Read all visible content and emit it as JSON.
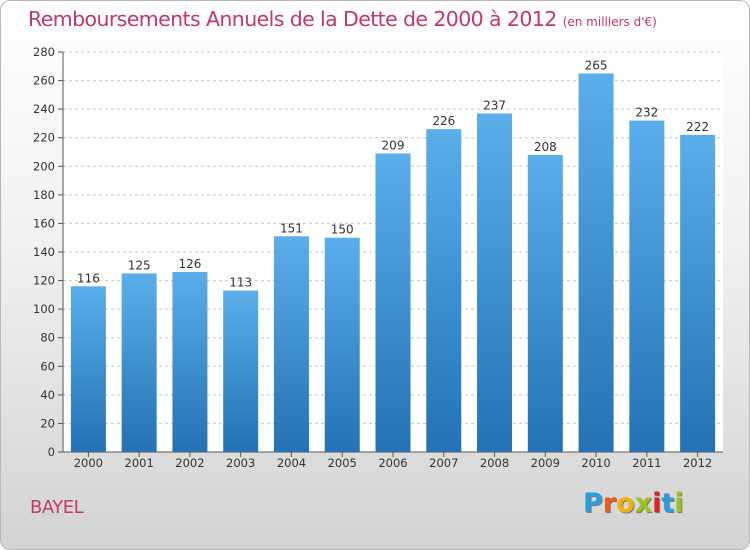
{
  "title": "Remboursements Annuels de la Dette de 2000 à 2012",
  "unit_label": "(en milliers d'€)",
  "commune": "BAYEL",
  "logo": {
    "letters": [
      "P",
      "r",
      "o",
      "x",
      "i",
      "t",
      "i"
    ],
    "colors": [
      "#2d9be0",
      "#e85d1a",
      "#f2b10a",
      "#9ec21c",
      "#e02222",
      "#2d9be0",
      "#9ec21c"
    ]
  },
  "colors": {
    "title": "#c2386b",
    "bar_top": "#5aaeea",
    "bar_bottom": "#2472b4",
    "grid": "#c8c8c8"
  },
  "chart_data": {
    "type": "bar",
    "title": "Remboursements Annuels de la Dette de 2000 à 2012",
    "categories": [
      "2000",
      "2001",
      "2002",
      "2003",
      "2004",
      "2005",
      "2006",
      "2007",
      "2008",
      "2009",
      "2010",
      "2011",
      "2012"
    ],
    "values": [
      116,
      125,
      126,
      113,
      151,
      150,
      209,
      226,
      237,
      208,
      265,
      232,
      222
    ],
    "ylim": [
      0,
      280
    ],
    "ytick_step": 20,
    "grid": true,
    "legend": "none"
  }
}
